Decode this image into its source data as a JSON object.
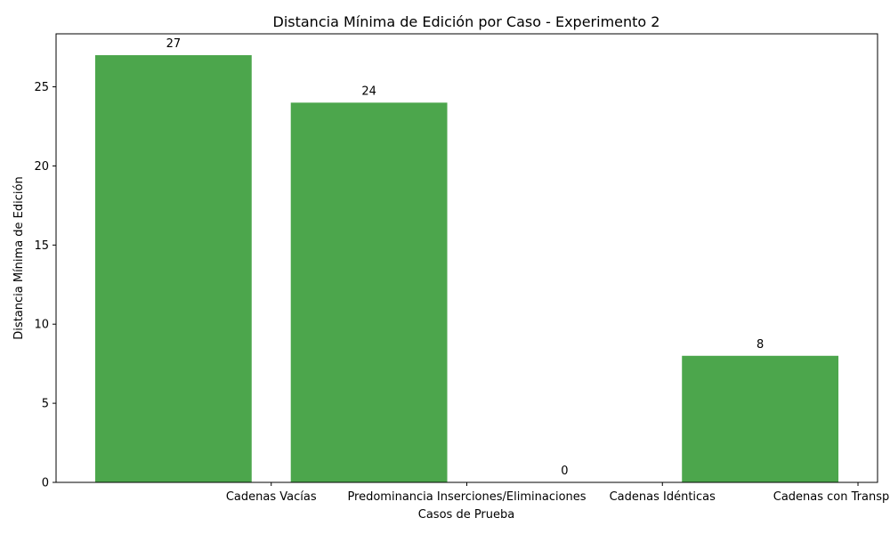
{
  "chart_data": {
    "type": "bar",
    "title": "Distancia Mínima de Edición por Caso - Experimento 2",
    "xlabel": "Casos de Prueba",
    "ylabel": "Distancia Mínima de Edición",
    "categories": [
      "Cadenas Vacías",
      "Predominancia Inserciones/Eliminaciones",
      "Cadenas Idénticas",
      "Cadenas con Transposiciones"
    ],
    "values": [
      27,
      24,
      0,
      8
    ],
    "ylim": [
      0,
      28.35
    ],
    "yticks": [
      0,
      5,
      10,
      15,
      20,
      25
    ],
    "grid": false,
    "bar_color": "#4CA64C",
    "show_value_labels": true
  }
}
